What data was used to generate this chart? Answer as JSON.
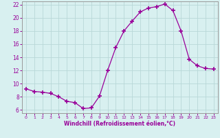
{
  "x": [
    0,
    1,
    2,
    3,
    4,
    5,
    6,
    7,
    8,
    9,
    10,
    11,
    12,
    13,
    14,
    15,
    16,
    17,
    18,
    19,
    20,
    21,
    22,
    23
  ],
  "y": [
    9.2,
    8.8,
    8.7,
    8.5,
    8.0,
    7.3,
    7.1,
    6.2,
    6.3,
    8.1,
    12.0,
    15.5,
    18.0,
    19.5,
    20.9,
    21.5,
    21.7,
    22.1,
    21.1,
    18.0,
    13.7,
    12.7,
    12.3,
    12.2
  ],
  "line_color": "#990099",
  "marker": "+",
  "marker_size": 5,
  "marker_lw": 1.2,
  "bg_color": "#d8f0f0",
  "grid_color": "#b8d8d8",
  "xlabel": "Windchill (Refroidissement éolien,°C)",
  "xlabel_color": "#990099",
  "tick_color": "#990099",
  "spine_color": "#999999",
  "ylim": [
    5.5,
    22.5
  ],
  "xlim": [
    -0.5,
    23.5
  ],
  "yticks": [
    6,
    8,
    10,
    12,
    14,
    16,
    18,
    20,
    22
  ],
  "xticks": [
    0,
    1,
    2,
    3,
    4,
    5,
    6,
    7,
    8,
    9,
    10,
    11,
    12,
    13,
    14,
    15,
    16,
    17,
    18,
    19,
    20,
    21,
    22,
    23
  ]
}
